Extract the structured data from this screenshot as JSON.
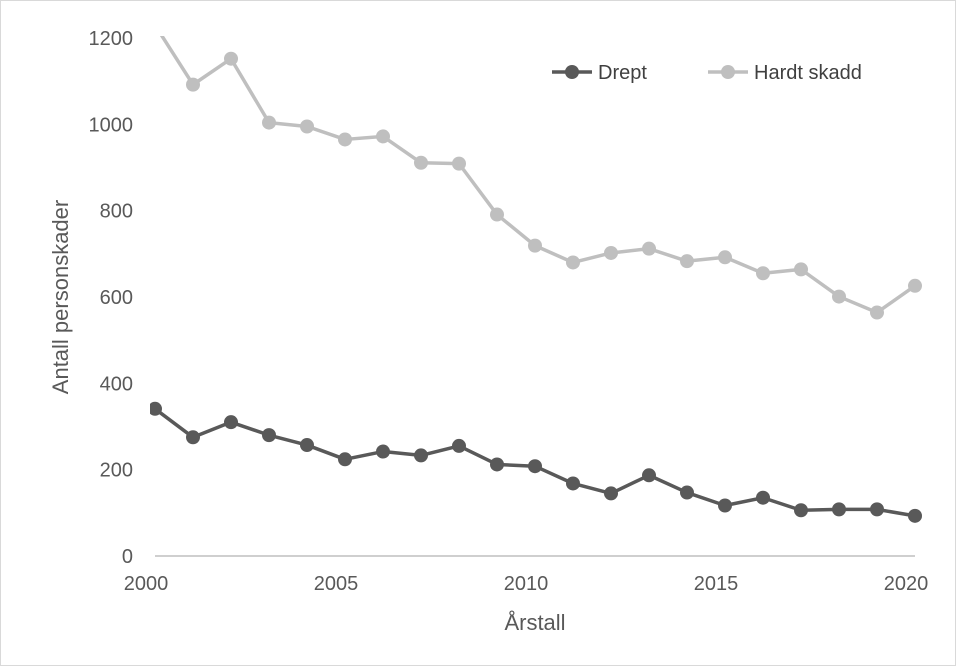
{
  "chart_data": {
    "type": "line",
    "title": "",
    "xlabel": "Årstall",
    "ylabel": "Antall personskader",
    "xlim": [
      2000,
      2020
    ],
    "ylim": [
      0,
      1200
    ],
    "x_ticks": [
      2000,
      2005,
      2010,
      2015,
      2020
    ],
    "y_ticks": [
      0,
      200,
      400,
      600,
      800,
      1000,
      1200
    ],
    "grid": false,
    "legend_position": "top-right",
    "x": [
      2000,
      2001,
      2002,
      2003,
      2004,
      2005,
      2006,
      2007,
      2008,
      2009,
      2010,
      2011,
      2012,
      2013,
      2014,
      2015,
      2016,
      2017,
      2018,
      2019,
      2020
    ],
    "series": [
      {
        "name": "Drept",
        "color": "#595959",
        "values": [
          341,
          275,
          310,
          280,
          257,
          224,
          242,
          233,
          255,
          212,
          208,
          168,
          145,
          187,
          147,
          117,
          135,
          106,
          108,
          108,
          93
        ]
      },
      {
        "name": "Hardt skadd",
        "color": "#bfbfbf",
        "values": [
          1230,
          1092,
          1152,
          1004,
          995,
          965,
          972,
          911,
          909,
          791,
          719,
          680,
          702,
          712,
          683,
          692,
          655,
          664,
          601,
          564,
          626
        ]
      }
    ]
  }
}
